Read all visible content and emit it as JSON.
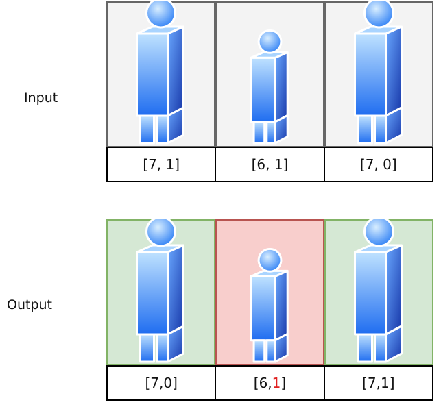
{
  "colors": {
    "neutral_bg": "#f3f3f3",
    "neutral_border": "#666666",
    "ok_bg": "#d5e8d4",
    "ok_border": "#82b366",
    "bad_bg": "#f8cecc",
    "bad_border": "#b85450",
    "figure_light": "#9fd0ff",
    "figure_dark": "#1b4fc4",
    "highlight_text": "#e02020"
  },
  "input": {
    "label": "Input",
    "people": [
      {
        "tag": "[7, 1]",
        "h": 7,
        "k": "1",
        "tall": true,
        "state": "neutral"
      },
      {
        "tag": "[6, 1]",
        "h": 6,
        "k": "1",
        "tall": false,
        "state": "neutral"
      },
      {
        "tag": "[7, 0]",
        "h": 7,
        "k": "0",
        "tall": true,
        "state": "neutral"
      }
    ]
  },
  "output": {
    "label": "Output",
    "people": [
      {
        "tag_prefix": "[7, ",
        "tag_value": "0",
        "tag_suffix": "]",
        "tall": true,
        "state": "ok"
      },
      {
        "tag_prefix": "[6, ",
        "tag_value": "1",
        "tag_suffix": "]",
        "tall": false,
        "state": "bad",
        "value_highlight": true
      },
      {
        "tag_prefix": "[7, ",
        "tag_value": "1",
        "tag_suffix": "]",
        "tall": true,
        "state": "ok"
      }
    ]
  }
}
